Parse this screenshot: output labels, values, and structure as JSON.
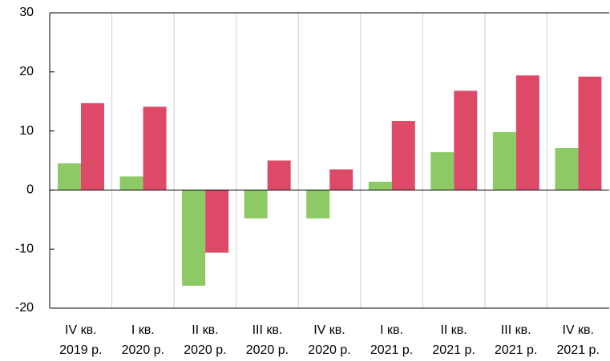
{
  "chart_data": {
    "type": "bar",
    "categories": [
      [
        "IV кв.",
        "2019 р."
      ],
      [
        "I кв.",
        "2020 р."
      ],
      [
        "II кв.",
        "2020 р."
      ],
      [
        "III кв.",
        "2020 р."
      ],
      [
        "IV кв.",
        "2020 р."
      ],
      [
        "I кв.",
        "2021 р."
      ],
      [
        "II кв.",
        "2021 р."
      ],
      [
        "III кв.",
        "2021 р."
      ],
      [
        "IV кв.",
        "2021 р."
      ]
    ],
    "series": [
      {
        "color": "#8dc964",
        "values": [
          4.5,
          2.3,
          -16.2,
          -4.8,
          -4.8,
          1.4,
          6.4,
          9.8,
          7.1
        ]
      },
      {
        "color": "#dd4a68",
        "values": [
          14.7,
          14.1,
          -10.6,
          5.0,
          3.5,
          11.7,
          16.8,
          19.4,
          19.2
        ]
      }
    ],
    "ylim": [
      -20,
      30
    ],
    "yticks": [
      -20,
      -10,
      0,
      10,
      20,
      30
    ]
  }
}
